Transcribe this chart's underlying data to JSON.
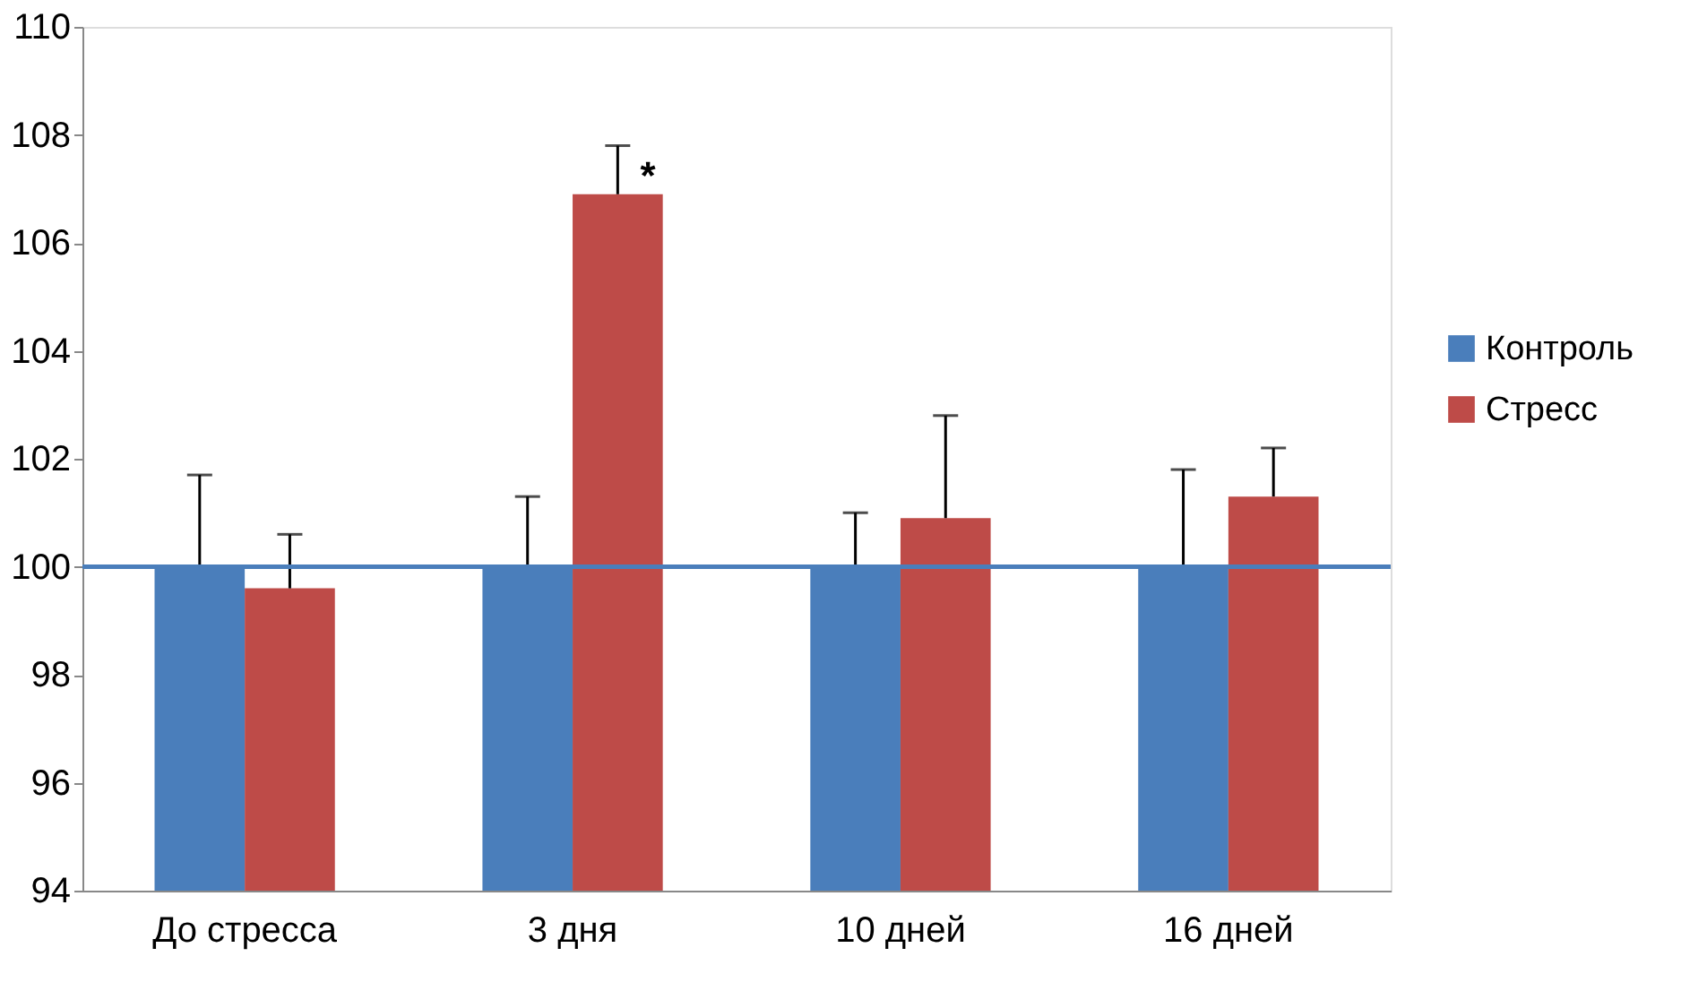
{
  "chart_data": {
    "type": "bar",
    "categories": [
      "До стресса",
      "3 дня",
      "10 дней",
      "16 дней"
    ],
    "series": [
      {
        "name": "Контроль",
        "color": "#4a7ebb",
        "values": [
          100,
          100,
          100,
          100
        ],
        "errors": [
          [
            100,
            101.7
          ],
          [
            100,
            101.3
          ],
          [
            100,
            101.0
          ],
          [
            100,
            101.8
          ]
        ]
      },
      {
        "name": "Стресс",
        "color": "#be4b48",
        "values": [
          99.6,
          106.9,
          100.9,
          101.3
        ],
        "errors": [
          [
            99.6,
            100.6
          ],
          [
            106.9,
            107.8
          ],
          [
            100.9,
            102.8
          ],
          [
            101.3,
            102.2
          ]
        ]
      }
    ],
    "ylim": [
      94,
      110
    ],
    "yticks": [
      94,
      96,
      98,
      100,
      102,
      104,
      106,
      108,
      110
    ],
    "ref_lines": [
      {
        "axis": "y",
        "value": 100,
        "color": "#4a7ebb",
        "line_style": "solid"
      }
    ],
    "annotations": [
      {
        "text": "*",
        "x": "3 дня",
        "y": 106.9
      }
    ],
    "grid": false,
    "legend": "right"
  }
}
